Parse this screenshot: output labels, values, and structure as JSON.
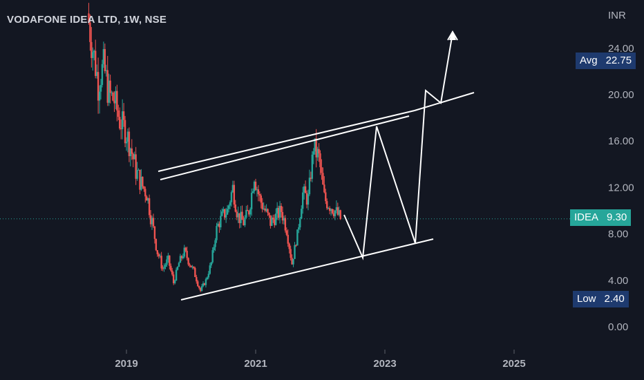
{
  "header": {
    "title": "VODAFONE IDEA LTD, 1W, NSE"
  },
  "axis": {
    "currency": "INR"
  },
  "markers": {
    "avg": {
      "label": "Avg",
      "value": "22.75"
    },
    "last": {
      "label": "IDEA",
      "value": "9.30"
    },
    "low": {
      "label": "Low",
      "value": "2.40"
    }
  },
  "colors": {
    "up": "#26a69a",
    "down": "#ef5350",
    "background": "#131722",
    "axis_text": "#b2b5be",
    "drawing": "#ffffff",
    "last_line": "#26a69a"
  },
  "chart_data": {
    "type": "candlestick",
    "title": "VODAFONE IDEA LTD, 1W, NSE",
    "ylabel": "INR",
    "ylim": [
      0,
      27
    ],
    "y_ticks": [
      "0.00",
      "4.00",
      "8.00",
      "12.00",
      "16.00",
      "20.00",
      "24.00"
    ],
    "x_ticks": [
      "2019",
      "2021",
      "2023",
      "2025"
    ],
    "last_price": 9.3,
    "avg_price": 22.75,
    "low_price": 2.4,
    "series": [
      {
        "x": "2018-06",
        "y": 27.0
      },
      {
        "x": "2018-07",
        "y": 24.0
      },
      {
        "x": "2018-08",
        "y": 21.0
      },
      {
        "x": "2018-09",
        "y": 22.5
      },
      {
        "x": "2018-10",
        "y": 20.0
      },
      {
        "x": "2018-11",
        "y": 19.5
      },
      {
        "x": "2018-12",
        "y": 17.8
      },
      {
        "x": "2019-01",
        "y": 17.0
      },
      {
        "x": "2019-02",
        "y": 15.5
      },
      {
        "x": "2019-03",
        "y": 13.5
      },
      {
        "x": "2019-04",
        "y": 12.3
      },
      {
        "x": "2019-05",
        "y": 11.5
      },
      {
        "x": "2019-06",
        "y": 9.0
      },
      {
        "x": "2019-07",
        "y": 6.5
      },
      {
        "x": "2019-08",
        "y": 5.0
      },
      {
        "x": "2019-09",
        "y": 5.8
      },
      {
        "x": "2019-10",
        "y": 3.8
      },
      {
        "x": "2019-11",
        "y": 5.5
      },
      {
        "x": "2019-12",
        "y": 6.5
      },
      {
        "x": "2020-01",
        "y": 5.5
      },
      {
        "x": "2020-02",
        "y": 4.5
      },
      {
        "x": "2020-03",
        "y": 3.1
      },
      {
        "x": "2020-04",
        "y": 4.0
      },
      {
        "x": "2020-05",
        "y": 5.5
      },
      {
        "x": "2020-06",
        "y": 8.5
      },
      {
        "x": "2020-07",
        "y": 9.5
      },
      {
        "x": "2020-08",
        "y": 10.0
      },
      {
        "x": "2020-09",
        "y": 12.0
      },
      {
        "x": "2020-10",
        "y": 9.5
      },
      {
        "x": "2020-11",
        "y": 9.0
      },
      {
        "x": "2020-12",
        "y": 10.0
      },
      {
        "x": "2021-01",
        "y": 13.0
      },
      {
        "x": "2021-02",
        "y": 11.0
      },
      {
        "x": "2021-03",
        "y": 10.0
      },
      {
        "x": "2021-04",
        "y": 9.0
      },
      {
        "x": "2021-05",
        "y": 9.5
      },
      {
        "x": "2021-06",
        "y": 10.0
      },
      {
        "x": "2021-07",
        "y": 8.5
      },
      {
        "x": "2021-08",
        "y": 5.5
      },
      {
        "x": "2021-09",
        "y": 8.0
      },
      {
        "x": "2021-10",
        "y": 11.5
      },
      {
        "x": "2021-11",
        "y": 11.0
      },
      {
        "x": "2021-12",
        "y": 15.5
      },
      {
        "x": "2022-01",
        "y": 14.5
      },
      {
        "x": "2022-02",
        "y": 11.0
      },
      {
        "x": "2022-03",
        "y": 10.5
      },
      {
        "x": "2022-04",
        "y": 10.0
      },
      {
        "x": "2022-05",
        "y": 9.3
      }
    ],
    "annotations": [
      "Ascending channel upper trendline (double line)",
      "Ascending channel lower trendline",
      "Projected zig-zag path: drop to channel support, rally to resistance, retest support, breakout upward",
      "Breakout arrow pointing up"
    ]
  }
}
